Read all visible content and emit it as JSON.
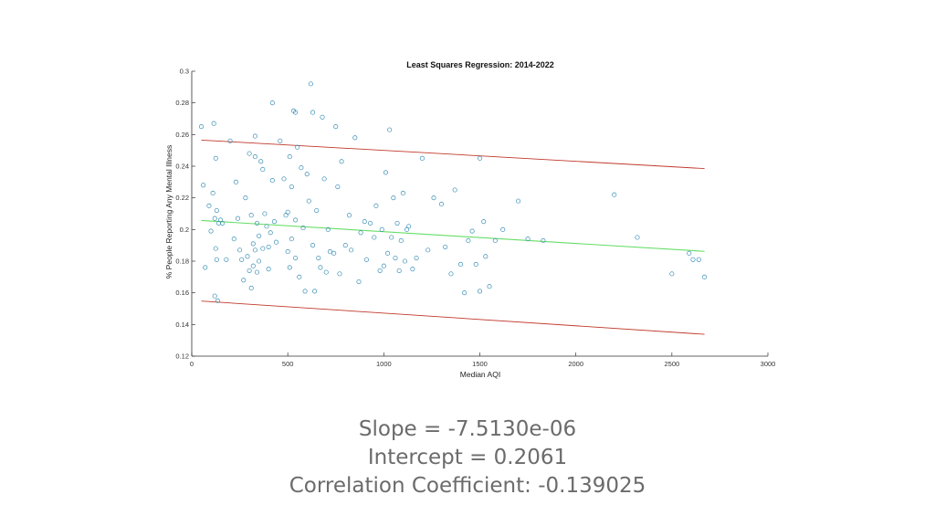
{
  "chart_data": {
    "type": "scatter",
    "title": "Least Squares Regression: 2014-2022",
    "xlabel": "Median AQI",
    "ylabel": "% People Reporting Any Mental Illness",
    "xlim": [
      0,
      3000
    ],
    "ylim": [
      0.12,
      0.3
    ],
    "xticks": [
      0,
      500,
      1000,
      1500,
      2000,
      2500,
      3000
    ],
    "yticks": [
      0.12,
      0.14,
      0.16,
      0.18,
      0.2,
      0.22,
      0.24,
      0.26,
      0.28,
      0.3
    ],
    "x_tick_labels": [
      "0",
      "500",
      "1000",
      "1500",
      "2000",
      "2500",
      "3000"
    ],
    "y_tick_labels": [
      "0.12",
      "0.14",
      "0.16",
      "0.18",
      "0.2",
      "0.22",
      "0.24",
      "0.26",
      "0.28",
      "0.3"
    ],
    "grid": false,
    "colors": {
      "points": "#3a8fb5",
      "fit": "#66dd66",
      "bounds": "#c0392b"
    },
    "series": [
      {
        "x": [
          50,
          60,
          70,
          90,
          100,
          110,
          115,
          120,
          120,
          125,
          125,
          130,
          130,
          135,
          140,
          150,
          160,
          180,
          200,
          220,
          230,
          240,
          250,
          260,
          270,
          280,
          290,
          300,
          300,
          310,
          310,
          320,
          320,
          330,
          330,
          340,
          340,
          350,
          350,
          360,
          370,
          370,
          380,
          390,
          400,
          400,
          410,
          420,
          430,
          440,
          460,
          480,
          490,
          500,
          500,
          510,
          510,
          520,
          520,
          530,
          540,
          540,
          550,
          560,
          570,
          580,
          590,
          600,
          610,
          620,
          630,
          640,
          650,
          660,
          670,
          680,
          690,
          700,
          710,
          720,
          740,
          750,
          760,
          770,
          780,
          800,
          820,
          830,
          850,
          870,
          880,
          900,
          910,
          930,
          950,
          960,
          980,
          990,
          1000,
          1010,
          1020,
          1030,
          1040,
          1050,
          1060,
          1070,
          1080,
          1090,
          1100,
          1110,
          1120,
          1130,
          1150,
          1170,
          1200,
          1230,
          1260,
          1300,
          1320,
          1350,
          1370,
          1400,
          1420,
          1440,
          1460,
          1480,
          1500,
          1500,
          1520,
          1530,
          1550,
          1580,
          1620,
          1700,
          1750,
          1830,
          2200,
          2320,
          2500,
          2590,
          2610,
          2640,
          2670,
          630,
          540,
          420,
          330
        ],
        "y": [
          0.265,
          0.228,
          0.176,
          0.215,
          0.199,
          0.223,
          0.267,
          0.207,
          0.158,
          0.245,
          0.188,
          0.181,
          0.212,
          0.155,
          0.204,
          0.206,
          0.204,
          0.181,
          0.256,
          0.194,
          0.23,
          0.207,
          0.187,
          0.181,
          0.168,
          0.22,
          0.183,
          0.248,
          0.174,
          0.209,
          0.163,
          0.191,
          0.177,
          0.259,
          0.187,
          0.173,
          0.204,
          0.196,
          0.18,
          0.243,
          0.238,
          0.188,
          0.21,
          0.202,
          0.189,
          0.175,
          0.198,
          0.28,
          0.205,
          0.192,
          0.256,
          0.232,
          0.209,
          0.211,
          0.186,
          0.246,
          0.176,
          0.227,
          0.194,
          0.275,
          0.206,
          0.182,
          0.252,
          0.17,
          0.239,
          0.201,
          0.161,
          0.235,
          0.218,
          0.292,
          0.19,
          0.161,
          0.212,
          0.182,
          0.176,
          0.271,
          0.232,
          0.173,
          0.2,
          0.186,
          0.185,
          0.265,
          0.227,
          0.172,
          0.243,
          0.19,
          0.209,
          0.187,
          0.258,
          0.167,
          0.198,
          0.205,
          0.181,
          0.204,
          0.195,
          0.215,
          0.174,
          0.2,
          0.177,
          0.236,
          0.185,
          0.263,
          0.195,
          0.22,
          0.182,
          0.204,
          0.174,
          0.193,
          0.223,
          0.18,
          0.2,
          0.202,
          0.175,
          0.182,
          0.245,
          0.187,
          0.22,
          0.216,
          0.189,
          0.172,
          0.225,
          0.178,
          0.16,
          0.193,
          0.199,
          0.178,
          0.245,
          0.161,
          0.205,
          0.183,
          0.164,
          0.193,
          0.2,
          0.218,
          0.194,
          0.193,
          0.222,
          0.195,
          0.172,
          0.185,
          0.181,
          0.181,
          0.17,
          0.274,
          0.274,
          0.231,
          0.246
        ]
      }
    ],
    "fit_line": {
      "x": [
        50,
        2670
      ],
      "y": [
        0.2057,
        0.1862
      ]
    },
    "upper_bound": {
      "x": [
        50,
        2670
      ],
      "y": [
        0.2565,
        0.2385
      ]
    },
    "lower_bound": {
      "x": [
        50,
        2670
      ],
      "y": [
        0.1548,
        0.1338
      ]
    }
  },
  "stats": {
    "slope": "Slope = -7.5130e-06",
    "intercept": "Intercept = 0.2061",
    "correlation": "Correlation Coefficient: -0.139025"
  }
}
